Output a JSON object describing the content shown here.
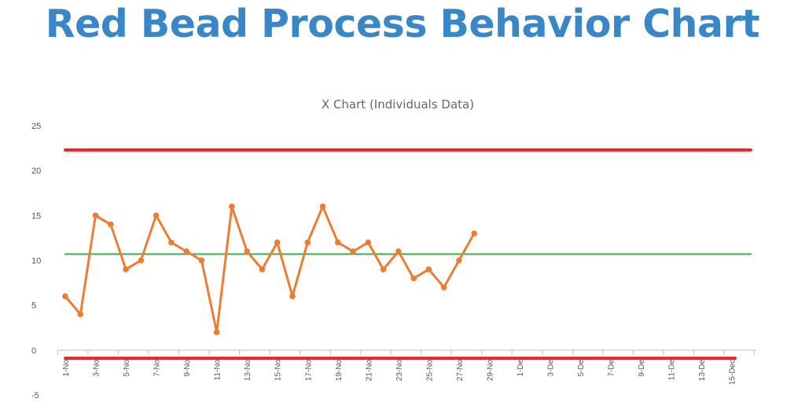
{
  "page": {
    "title": "Red Bead Process Behavior Chart",
    "title_color": "#3a87c8"
  },
  "chart_data": {
    "type": "line",
    "title": "X Chart (Individuals Data)",
    "xlabel": "",
    "ylabel": "",
    "ylim": [
      -5,
      25
    ],
    "yticks": [
      -5,
      0,
      5,
      10,
      15,
      20,
      25
    ],
    "grid": false,
    "x_tick_labels": [
      "1-No",
      "3-No",
      "5-No",
      "7-No",
      "9-No",
      "11-No",
      "13-No",
      "15-No",
      "17-No",
      "19-No",
      "21-No",
      "23-No",
      "25-No",
      "27-No",
      "29-No",
      "1-De",
      "3-De",
      "5-De",
      "7-De",
      "9-De",
      "11-De",
      "13-De",
      "15-Dec"
    ],
    "x_category_count": 46,
    "series": [
      {
        "type": "line",
        "color": "#ee7d31",
        "marker": "circle",
        "values": [
          6,
          4,
          15,
          14,
          9,
          10,
          15,
          12,
          11,
          10,
          2,
          16,
          11,
          9,
          12,
          6,
          12,
          16,
          12,
          11,
          12,
          9,
          11,
          8,
          9,
          7,
          10,
          13
        ]
      }
    ],
    "reference_lines": [
      {
        "kind": "upper-limit",
        "value": 22.3,
        "color": "#e8262b"
      },
      {
        "kind": "center-line",
        "value": 10.7,
        "color": "#3aab4f"
      },
      {
        "kind": "lower-limit",
        "value": -0.9,
        "color": "#e8262b"
      }
    ],
    "axis_color": "#bfbfbf"
  }
}
